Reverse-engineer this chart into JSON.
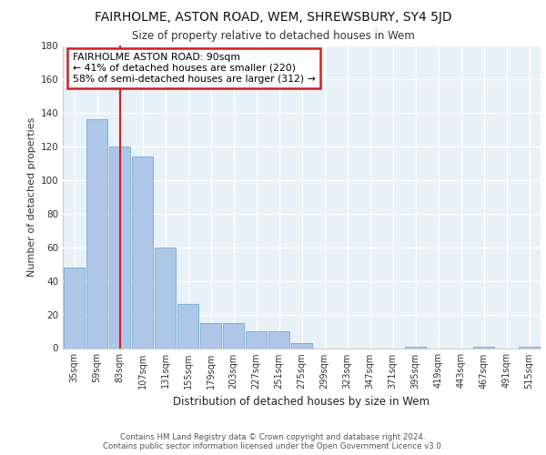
{
  "title1": "FAIRHOLME, ASTON ROAD, WEM, SHREWSBURY, SY4 5JD",
  "title2": "Size of property relative to detached houses in Wem",
  "xlabel": "Distribution of detached houses by size in Wem",
  "ylabel": "Number of detached properties",
  "categories": [
    "35sqm",
    "59sqm",
    "83sqm",
    "107sqm",
    "131sqm",
    "155sqm",
    "179sqm",
    "203sqm",
    "227sqm",
    "251sqm",
    "275sqm",
    "299sqm",
    "323sqm",
    "347sqm",
    "371sqm",
    "395sqm",
    "419sqm",
    "443sqm",
    "467sqm",
    "491sqm",
    "515sqm"
  ],
  "values": [
    48,
    136,
    120,
    114,
    60,
    26,
    15,
    15,
    10,
    10,
    3,
    0,
    0,
    0,
    0,
    1,
    0,
    0,
    1,
    0,
    1
  ],
  "bar_color": "#aec6e8",
  "bar_edgecolor": "#7ab0d8",
  "background_color": "#e8f0f8",
  "grid_color": "#ffffff",
  "marker_label1": "FAIRHOLME ASTON ROAD: 90sqm",
  "marker_label2": "← 41% of detached houses are smaller (220)",
  "marker_label3": "58% of semi-detached houses are larger (312) →",
  "annotation_box_edgecolor": "#cc2222",
  "red_line_color": "#cc2222",
  "footer1": "Contains HM Land Registry data © Crown copyright and database right 2024.",
  "footer2": "Contains public sector information licensed under the Open Government Licence v3.0.",
  "ylim": [
    0,
    180
  ],
  "yticks": [
    0,
    20,
    40,
    60,
    80,
    100,
    120,
    140,
    160,
    180
  ]
}
